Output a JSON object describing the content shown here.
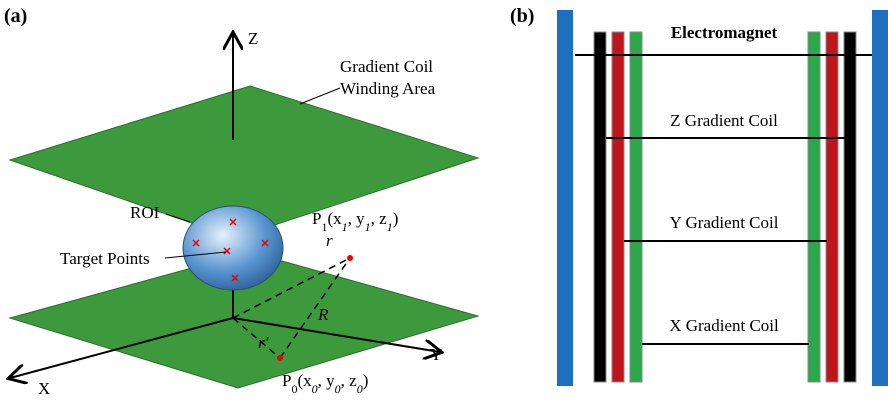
{
  "panel_a": {
    "label": "(a)",
    "axes": {
      "z": "Z",
      "y": "Y",
      "x": "X"
    },
    "plane_label": [
      "Gradient Coil",
      "Winding Area"
    ],
    "roi": "ROI",
    "target_points": "Target Points",
    "p1_label": [
      "P",
      "1",
      "(x",
      "1",
      ", y",
      "1",
      ", z",
      "1",
      ")"
    ],
    "p0_label": [
      "P",
      "0",
      "(x",
      "0",
      ", y",
      "0",
      ", z",
      "0",
      ")"
    ],
    "r": "r",
    "big_r": "R",
    "r_prime": "r'"
  },
  "panel_b": {
    "label": "(b)",
    "electromagnet": "Electromagnet",
    "coils": [
      "Z Gradient Coil",
      "Y Gradient Coil",
      "X Gradient Coil"
    ]
  }
}
